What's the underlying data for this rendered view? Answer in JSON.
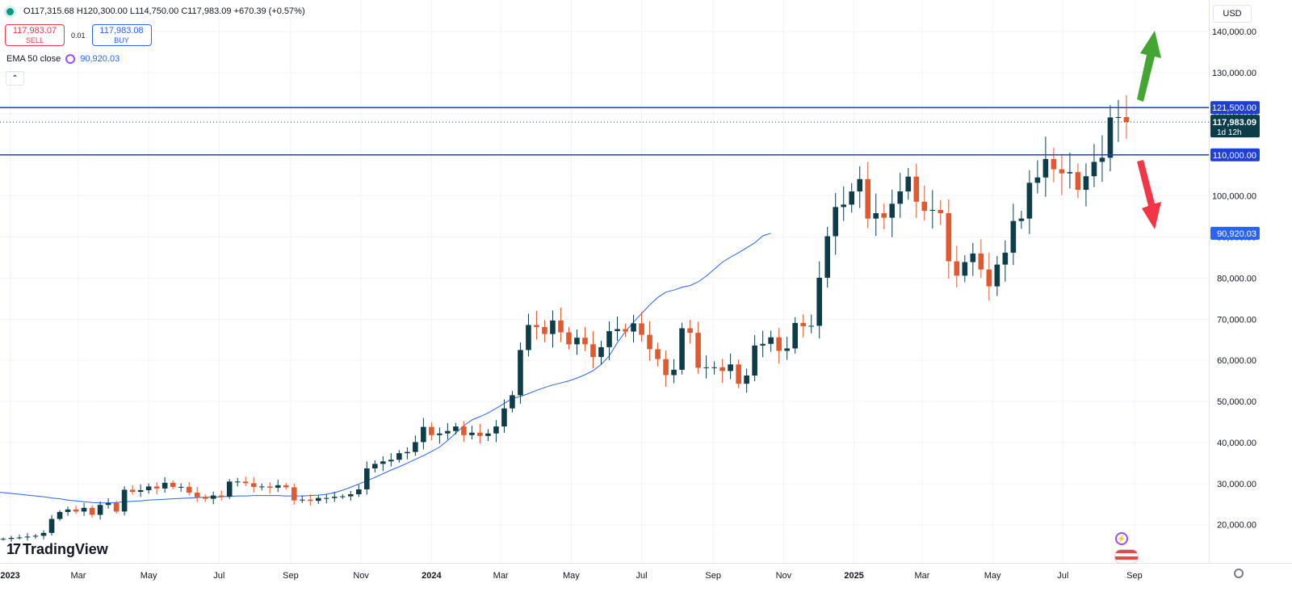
{
  "header": {
    "ohlc": "O117,315.68 H120,300.00 L114,750.00 C117,983.09 +670.39 (+0.57%)",
    "sell_price": "117,983.07",
    "sell_label": "SELL",
    "spread": "0.01",
    "buy_price": "117,983.08",
    "buy_label": "BUY",
    "ema_label": "EMA 50 close",
    "ema_value": "90,920.03",
    "currency": "USD"
  },
  "branding": {
    "logo_text": "TradingView"
  },
  "colors": {
    "up": "#0b3d4a",
    "down": "#e5582e",
    "ema": "#2962ff",
    "level": "#1e3fd6",
    "arrow_up": "#43a632",
    "arrow_down": "#f23645",
    "grid": "#f0f3fa"
  },
  "chart_data": {
    "type": "candlestick",
    "interval": "weekly",
    "ylim": [
      10000,
      146000
    ],
    "x_range": [
      "2022-12-19",
      "2025-10-06"
    ],
    "y_ticks": [
      "20,000.00",
      "30,000.00",
      "40,000.00",
      "50,000.00",
      "60,000.00",
      "70,000.00",
      "80,000.00",
      "90,000.00",
      "100,000.00",
      "110,000.00",
      "120,000.00",
      "130,000.00",
      "140,000.00"
    ],
    "y_tick_values": [
      20000,
      30000,
      40000,
      50000,
      60000,
      70000,
      80000,
      90000,
      100000,
      110000,
      120000,
      130000,
      140000
    ],
    "x_ticks": [
      {
        "label": "2023",
        "date": "2023-01-01",
        "bold": true
      },
      {
        "label": "Mar",
        "date": "2023-03-01"
      },
      {
        "label": "May",
        "date": "2023-05-01"
      },
      {
        "label": "Jul",
        "date": "2023-07-01"
      },
      {
        "label": "Sep",
        "date": "2023-09-01"
      },
      {
        "label": "Nov",
        "date": "2023-11-01"
      },
      {
        "label": "2024",
        "date": "2024-01-01",
        "bold": true
      },
      {
        "label": "Mar",
        "date": "2024-03-01"
      },
      {
        "label": "May",
        "date": "2024-05-01"
      },
      {
        "label": "Jul",
        "date": "2024-07-01"
      },
      {
        "label": "Sep",
        "date": "2024-09-01"
      },
      {
        "label": "Nov",
        "date": "2024-11-01"
      },
      {
        "label": "2025",
        "date": "2025-01-01",
        "bold": true
      },
      {
        "label": "Mar",
        "date": "2025-03-01"
      },
      {
        "label": "May",
        "date": "2025-05-01"
      },
      {
        "label": "Jul",
        "date": "2025-07-01"
      },
      {
        "label": "Sep",
        "date": "2025-09-01"
      }
    ],
    "candles": {
      "first_date": "2022-12-26",
      "step_days": 7,
      "close": [
        16550,
        16800,
        16900,
        17100,
        17300,
        18000,
        21400,
        23100,
        23700,
        23200,
        24100,
        22400,
        24800,
        25300,
        23200,
        28500,
        28000,
        28400,
        29300,
        28800,
        30200,
        29200,
        29200,
        27800,
        26700,
        26300,
        27100,
        26800,
        30500,
        30500,
        30100,
        29200,
        29300,
        29000,
        29600,
        29100,
        25900,
        26100,
        25800,
        26500,
        26500,
        26800,
        26900,
        27400,
        28600,
        33700,
        34800,
        35400,
        35800,
        37400,
        37700,
        40100,
        43800,
        41800,
        42200,
        42800,
        43900,
        41800,
        42400,
        41600,
        42200,
        43900,
        48300,
        51500,
        62500,
        68600,
        68100,
        66400,
        69700,
        66800,
        63900,
        65500,
        63900,
        60800,
        63200,
        67100,
        67600,
        67000,
        69000,
        66200,
        62700,
        60300,
        56400,
        57700,
        67800,
        66700,
        58200,
        58300,
        58300,
        57400,
        59000,
        54300,
        56300,
        63600,
        64000,
        65600,
        62300,
        62900,
        69100,
        68300,
        68400,
        80100,
        90200,
        97300,
        97900,
        101100,
        104100,
        94500,
        95800,
        94700,
        98100,
        101100,
        104700,
        98600,
        96400,
        96600,
        95800,
        84100,
        80600,
        83900,
        86000,
        82100,
        78000,
        83300,
        86200,
        93900,
        94500,
        103200,
        104500,
        109000,
        106500,
        105500,
        105800,
        101500,
        104800,
        108300,
        109300,
        119100,
        119200,
        117983
      ]
    },
    "ema50": {
      "label": "EMA 50 close",
      "first_date": "2022-12-19",
      "step_days": 7,
      "values": [
        28000,
        27800,
        27600,
        27400,
        27200,
        27000,
        26800,
        26500,
        26300,
        26000,
        25800,
        25600,
        25400,
        25300,
        25300,
        25400,
        25600,
        25700,
        25800,
        26000,
        26100,
        26200,
        26300,
        26400,
        26500,
        26600,
        26700,
        26700,
        26800,
        26900,
        27000,
        27000,
        27100,
        27100,
        27100,
        27100,
        27000,
        27000,
        27000,
        27100,
        27200,
        27400,
        27800,
        28400,
        29100,
        29900,
        30700,
        31500,
        32400,
        33300,
        34100,
        35000,
        35900,
        36800,
        37800,
        38900,
        40500,
        42300,
        44100,
        45500,
        46300,
        47200,
        48300,
        49500,
        50700,
        51200,
        51900,
        52700,
        53400,
        54000,
        54500,
        55000,
        55700,
        56500,
        57500,
        59000,
        61100,
        64300,
        67000,
        69300,
        71400,
        73500,
        75300,
        76600,
        77100,
        77800,
        78200,
        79100,
        80500,
        82200,
        83900,
        85100,
        86200,
        87400,
        88600,
        90300,
        90920
      ]
    },
    "horizontal_levels": [
      {
        "value": 121500,
        "label": "121,500.00"
      },
      {
        "value": 110000,
        "label": "110,000.00"
      }
    ],
    "last_price": {
      "value": 117983.09,
      "label": "117,983.09",
      "countdown": "1d 12h"
    },
    "ema_last": {
      "value": 90920.03,
      "label": "90,920.03"
    },
    "annotations": [
      {
        "type": "arrow",
        "direction": "up",
        "color": "green"
      },
      {
        "type": "arrow",
        "direction": "down",
        "color": "red"
      }
    ]
  }
}
